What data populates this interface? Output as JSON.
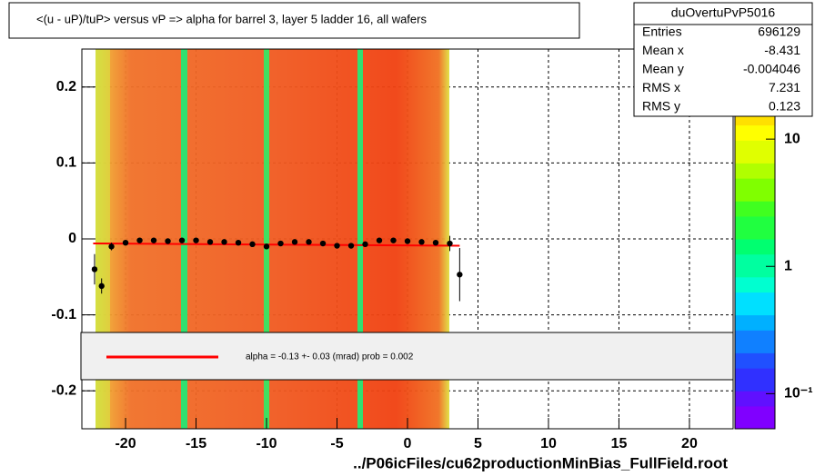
{
  "chart_data": {
    "type": "profile",
    "title": "<(u - uP)/tuP> versus   vP => alpha for barrel 3, layer 5 ladder 16, all wafers",
    "x": [
      -22.2,
      -21.7,
      -21,
      -20,
      -19,
      -18,
      -17,
      -16,
      -15,
      -14,
      -13,
      -12,
      -11,
      -10,
      -9,
      -8,
      -7,
      -6,
      -5,
      -4,
      -3,
      -2,
      -1,
      0,
      1,
      2,
      3,
      3.7
    ],
    "series": [
      {
        "name": "profile",
        "color": "#000000",
        "values": [
          -0.04,
          -0.062,
          -0.01,
          -0.005,
          -0.002,
          -0.002,
          -0.003,
          -0.002,
          -0.002,
          -0.004,
          -0.004,
          -0.005,
          -0.007,
          -0.01,
          -0.006,
          -0.004,
          -0.004,
          -0.006,
          -0.009,
          -0.009,
          -0.007,
          -0.002,
          -0.002,
          -0.003,
          -0.004,
          -0.005,
          -0.006,
          -0.047
        ],
        "errors": [
          0.02,
          0.01,
          0.005,
          0.003,
          0.002,
          0.002,
          0.002,
          0.002,
          0.002,
          0.002,
          0.002,
          0.002,
          0.002,
          0.002,
          0.002,
          0.002,
          0.002,
          0.002,
          0.002,
          0.002,
          0.002,
          0.002,
          0.002,
          0.002,
          0.002,
          0.003,
          0.01,
          0.035
        ]
      }
    ],
    "fit": {
      "name": "alpha =   -0.13 +-  0.03 (mrad) prob = 0.002",
      "color": "#ff0000",
      "x": [
        -22.3,
        3.7
      ],
      "y": [
        -0.006,
        -0.009
      ]
    },
    "xlim": [
      -23.1,
      23.1
    ],
    "xticks": [
      -20,
      -15,
      -10,
      -5,
      0,
      5,
      10,
      15,
      20
    ],
    "ylim": [
      -0.25,
      0.25
    ],
    "yticks": [
      -0.2,
      -0.1,
      0,
      0.1,
      0.2
    ],
    "zlim": [
      0.053,
      51
    ],
    "zticks": [
      {
        "value": 0.1,
        "label": "10⁻¹"
      },
      1,
      10
    ],
    "zscale": "log",
    "grid": true,
    "stats": {
      "name": "duOvertuPvP5016",
      "rows": [
        [
          "Entries",
          696129
        ],
        [
          "Mean x",
          -8.431
        ],
        [
          "Mean y",
          -0.004046
        ],
        [
          "RMS x",
          7.231
        ],
        [
          "RMS y",
          0.123
        ]
      ]
    },
    "footer": "../P06icFiles/cu62productionMinBias_FullField.root"
  }
}
